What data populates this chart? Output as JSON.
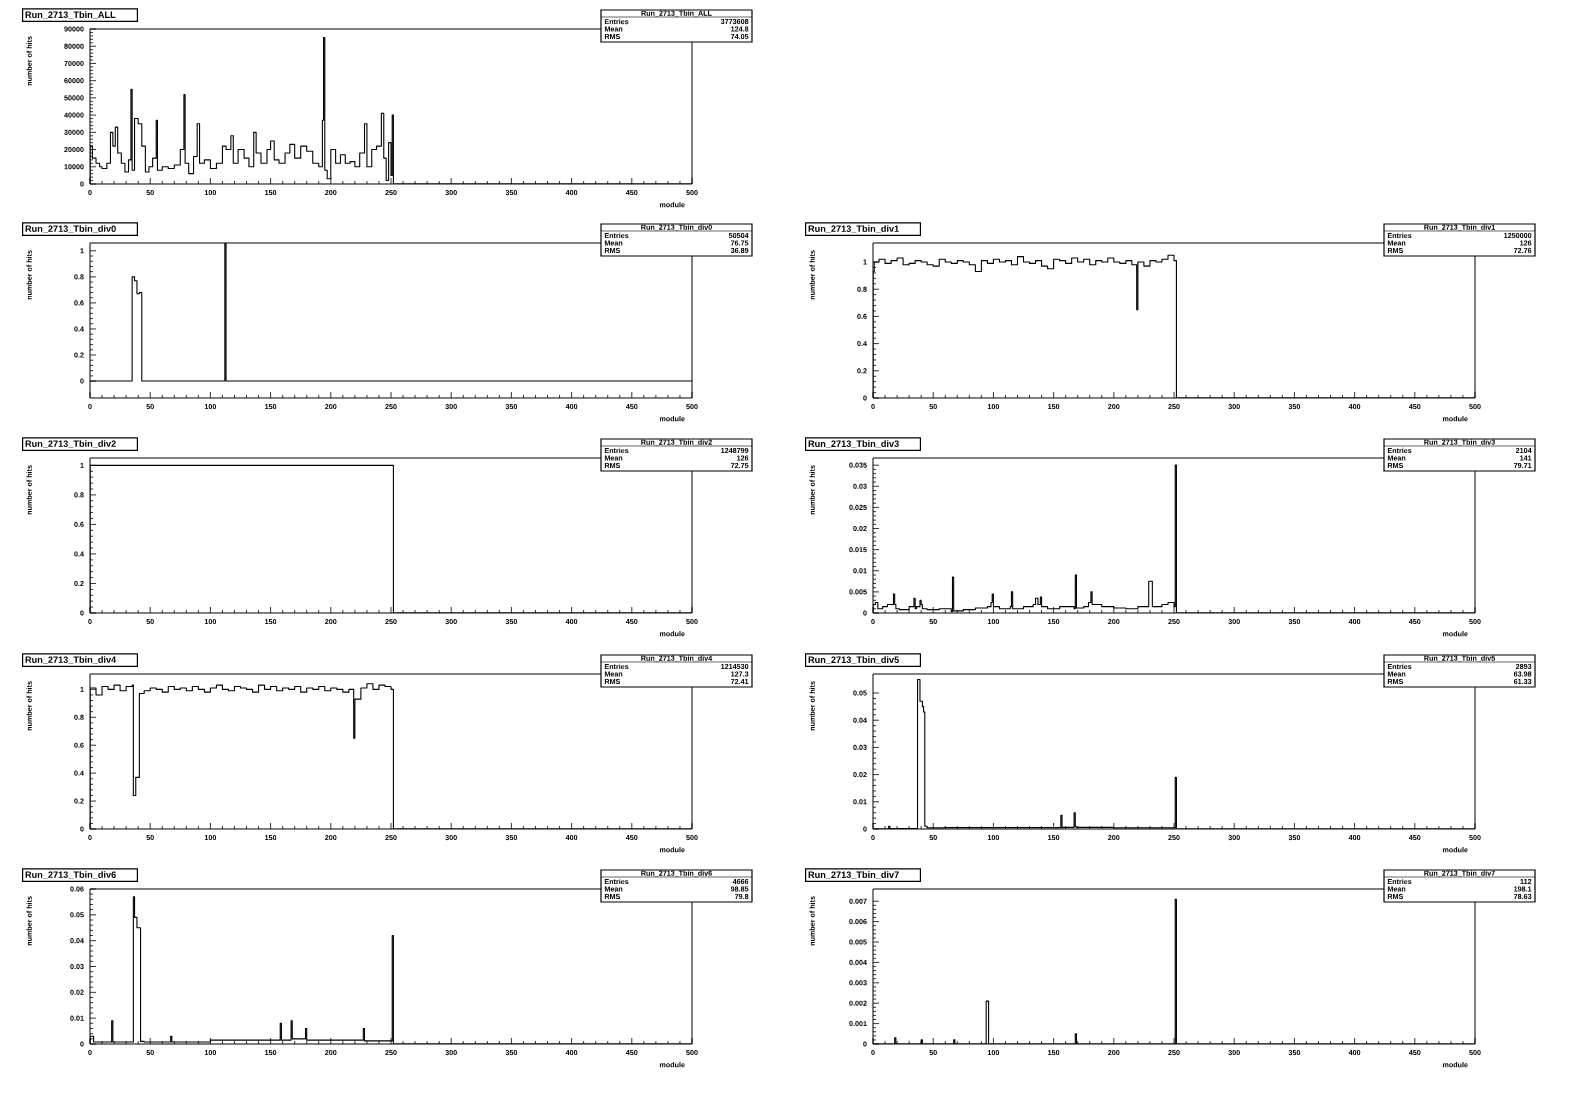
{
  "chart_data": [
    {
      "type": "histogram",
      "title": "Run_2713_Tbin_ALL",
      "xlabel": "module",
      "ylabel": "number of hits",
      "color": "#000000",
      "annotations": [
        "Run_2713_Tbin_ALL",
        "Entries",
        "3773608",
        "Mean",
        "124.8",
        "RMS",
        "74.05"
      ],
      "xlim": [
        0,
        500
      ],
      "xticks": [
        0,
        50,
        100,
        150,
        200,
        250,
        300,
        350,
        400,
        450,
        500
      ],
      "ylim": [
        0,
        90000
      ],
      "yticks": [
        0,
        10000,
        20000,
        30000,
        40000,
        50000,
        60000,
        70000,
        80000,
        90000
      ],
      "bins": [
        0,
        2,
        5,
        8,
        10,
        14,
        17,
        19,
        21,
        23,
        26,
        29,
        32,
        34,
        35,
        37,
        40,
        43,
        46,
        49,
        52,
        55,
        56,
        60,
        65,
        70,
        75,
        78,
        79,
        82,
        86,
        89,
        91,
        95,
        100,
        105,
        110,
        113,
        117,
        119,
        123,
        128,
        132,
        136,
        138,
        142,
        147,
        150,
        153,
        157,
        162,
        166,
        170,
        175,
        180,
        185,
        190,
        193,
        194,
        195,
        197,
        200,
        204,
        208,
        212,
        216,
        220,
        224,
        228,
        230,
        234,
        238,
        242,
        244,
        246,
        248,
        250,
        251,
        252,
        500
      ],
      "values": [
        22000,
        15000,
        12000,
        10000,
        9000,
        12000,
        30000,
        22000,
        33000,
        18000,
        12000,
        7000,
        14000,
        55000,
        8000,
        38000,
        35000,
        22000,
        7000,
        10000,
        15000,
        37000,
        8000,
        10000,
        9000,
        11000,
        20000,
        52000,
        12000,
        6000,
        16000,
        35000,
        12000,
        14000,
        9000,
        12000,
        22000,
        20000,
        28000,
        12000,
        20000,
        15000,
        10000,
        30000,
        18000,
        12000,
        20000,
        25000,
        14000,
        12000,
        18000,
        23000,
        15000,
        22000,
        19000,
        12000,
        10000,
        37000,
        85000,
        8000,
        3000,
        20000,
        12000,
        17000,
        12000,
        13000,
        10000,
        18000,
        35000,
        10000,
        20000,
        22000,
        41000,
        15000,
        2000,
        24000,
        5000,
        40000,
        0
      ]
    },
    {
      "type": "histogram",
      "title": "Run_2713_Tbin_div0",
      "xlabel": "module",
      "ylabel": "number of hits",
      "color": "#000000",
      "annotations": [
        "Run_2713_Tbin_div0",
        "Entries",
        "50504",
        "Mean",
        "76.75",
        "RMS",
        "36.89"
      ],
      "xlim": [
        0,
        500
      ],
      "xticks": [
        0,
        50,
        100,
        150,
        200,
        250,
        300,
        350,
        400,
        450,
        500
      ],
      "ylim": [
        -0.13,
        1.06
      ],
      "yticks": [
        0,
        0.2,
        0.4,
        0.6,
        0.8,
        1
      ],
      "bins": [
        0,
        35,
        37,
        39,
        41,
        43,
        112,
        113,
        500
      ],
      "values": [
        0,
        0.8,
        0.77,
        0.67,
        0.68,
        0,
        1.06,
        0
      ]
    },
    {
      "type": "histogram",
      "title": "Run_2713_Tbin_div1",
      "xlabel": "module",
      "ylabel": "number of hits",
      "color": "#000000",
      "annotations": [
        "Run_2713_Tbin_div1",
        "Entries",
        "1250000",
        "Mean",
        "126",
        "RMS",
        "72.76"
      ],
      "xlim": [
        0,
        500
      ],
      "xticks": [
        0,
        50,
        100,
        150,
        200,
        250,
        300,
        350,
        400,
        450,
        500
      ],
      "ylim": [
        0,
        1.14
      ],
      "yticks": [
        0,
        0.2,
        0.4,
        0.6,
        0.8,
        1
      ],
      "bins": [
        0,
        1,
        5,
        10,
        15,
        20,
        25,
        30,
        35,
        40,
        45,
        50,
        55,
        60,
        65,
        70,
        75,
        80,
        85,
        90,
        95,
        100,
        105,
        110,
        115,
        120,
        125,
        130,
        135,
        140,
        145,
        150,
        155,
        160,
        165,
        170,
        175,
        180,
        185,
        190,
        195,
        200,
        205,
        210,
        215,
        219,
        220,
        225,
        230,
        235,
        240,
        245,
        250,
        252,
        500
      ],
      "values": [
        0.93,
        1.0,
        1.02,
        0.99,
        1.01,
        1.03,
        0.98,
        0.99,
        1.01,
        1.0,
        0.98,
        0.97,
        1.02,
        1.0,
        0.99,
        1.01,
        1.0,
        0.98,
        0.93,
        1.01,
        0.99,
        1.02,
        1.0,
        1.01,
        0.98,
        1.04,
        1.0,
        0.99,
        1.01,
        0.97,
        0.95,
        1.02,
        1.01,
        0.99,
        1.03,
        1.0,
        1.02,
        0.98,
        1.01,
        1.0,
        1.03,
        1.0,
        0.99,
        1.01,
        0.98,
        0.65,
        1.0,
        0.97,
        1.01,
        1.0,
        1.02,
        1.05,
        1.01,
        0
      ]
    },
    {
      "type": "histogram",
      "title": "Run_2713_Tbin_div2",
      "xlabel": "module",
      "ylabel": "number of hits",
      "color": "#000000",
      "annotations": [
        "Run_2713_Tbin_div2",
        "Entries",
        "1248799",
        "Mean",
        "126",
        "RMS",
        "72.75"
      ],
      "xlim": [
        0,
        500
      ],
      "xticks": [
        0,
        50,
        100,
        150,
        200,
        250,
        300,
        350,
        400,
        450,
        500
      ],
      "ylim": [
        0,
        1.05
      ],
      "yticks": [
        0,
        0.2,
        0.4,
        0.6,
        0.8,
        1
      ],
      "bins": [
        0,
        25,
        50,
        75,
        100,
        125,
        150,
        175,
        200,
        225,
        250,
        252,
        500
      ],
      "values": [
        1,
        1,
        1,
        1,
        1,
        1,
        1,
        1,
        1,
        1,
        1,
        0
      ]
    },
    {
      "type": "histogram",
      "title": "Run_2713_Tbin_div3",
      "xlabel": "module",
      "ylabel": "number of hits",
      "color": "#000000",
      "annotations": [
        "Run_2713_Tbin_div3",
        "Entries",
        "2104",
        "Mean",
        "141",
        "RMS",
        "79.71"
      ],
      "xlim": [
        0,
        500
      ],
      "xticks": [
        0,
        50,
        100,
        150,
        200,
        250,
        300,
        350,
        400,
        450,
        500
      ],
      "ylim": [
        0,
        0.0367
      ],
      "yticks": [
        0,
        0.005,
        0.01,
        0.015,
        0.02,
        0.025,
        0.03,
        0.035
      ],
      "bins": [
        0,
        2,
        4,
        8,
        12,
        17,
        18,
        19,
        22,
        30,
        34,
        35,
        36,
        39,
        40,
        41,
        45,
        55,
        65,
        66,
        67,
        75,
        85,
        95,
        98,
        99,
        100,
        105,
        114,
        115,
        116,
        125,
        133,
        135,
        137,
        139,
        140,
        145,
        155,
        167,
        168,
        169,
        175,
        179,
        181,
        182,
        190,
        200,
        210,
        220,
        226,
        229,
        232,
        240,
        245,
        250,
        251,
        252,
        500
      ],
      "values": [
        0.002,
        0.0025,
        0.001,
        0.0015,
        0.002,
        0.0045,
        0.002,
        0.001,
        0.0008,
        0.0015,
        0.0035,
        0.001,
        0.0015,
        0.003,
        0.002,
        0.001,
        0.0008,
        0.001,
        0.0003,
        0.0085,
        0.0005,
        0.0008,
        0.0012,
        0.0015,
        0.0025,
        0.0045,
        0.0015,
        0.001,
        0.0015,
        0.005,
        0.001,
        0.0015,
        0.002,
        0.0035,
        0.002,
        0.0038,
        0.0015,
        0.001,
        0.0015,
        0.001,
        0.009,
        0.0012,
        0.0015,
        0.0025,
        0.005,
        0.002,
        0.0015,
        0.0012,
        0.001,
        0.0015,
        0.0015,
        0.0075,
        0.0015,
        0.002,
        0.0025,
        0.0015,
        0.035,
        0
      ]
    },
    {
      "type": "histogram",
      "title": "Run_2713_Tbin_div4",
      "xlabel": "module",
      "ylabel": "number of hits",
      "color": "#000000",
      "annotations": [
        "Run_2713_Tbin_div4",
        "Entries",
        "1214530",
        "Mean",
        "127.3",
        "RMS",
        "72.41"
      ],
      "xlim": [
        0,
        500
      ],
      "xticks": [
        0,
        50,
        100,
        150,
        200,
        250,
        300,
        350,
        400,
        450,
        500
      ],
      "ylim": [
        0,
        1.11
      ],
      "yticks": [
        0,
        0.2,
        0.4,
        0.6,
        0.8,
        1
      ],
      "bins": [
        0,
        5,
        10,
        15,
        20,
        25,
        30,
        35,
        36,
        38,
        41,
        45,
        50,
        55,
        60,
        65,
        70,
        75,
        80,
        85,
        90,
        95,
        100,
        105,
        110,
        115,
        120,
        125,
        130,
        135,
        140,
        145,
        150,
        155,
        160,
        165,
        170,
        175,
        180,
        185,
        190,
        195,
        200,
        205,
        210,
        215,
        219,
        220,
        225,
        230,
        235,
        240,
        245,
        250,
        252,
        500
      ],
      "values": [
        1.01,
        0.96,
        1.02,
        1.0,
        1.03,
        0.99,
        1.02,
        1.03,
        0.24,
        0.37,
        0.97,
        0.99,
        1.01,
        1.0,
        0.98,
        1.02,
        1.0,
        1.01,
        0.99,
        1.02,
        1.0,
        0.98,
        1.01,
        1.03,
        1.0,
        0.99,
        1.02,
        1.01,
        1.0,
        0.98,
        1.03,
        1.0,
        1.02,
        0.99,
        1.01,
        1.0,
        1.02,
        0.98,
        1.01,
        1.0,
        1.02,
        0.99,
        1.01,
        1.0,
        0.98,
        1.0,
        0.65,
        0.93,
        1.01,
        1.04,
        1.0,
        1.03,
        1.02,
        1.0,
        0
      ]
    },
    {
      "type": "histogram",
      "title": "Run_2713_Tbin_div5",
      "xlabel": "module",
      "ylabel": "number of hits",
      "color": "#000000",
      "annotations": [
        "Run_2713_Tbin_div5",
        "Entries",
        "2893",
        "Mean",
        "63.98",
        "RMS",
        "61.33"
      ],
      "xlim": [
        0,
        500
      ],
      "xticks": [
        0,
        50,
        100,
        150,
        200,
        250,
        300,
        350,
        400,
        450,
        500
      ],
      "ylim": [
        0,
        0.057
      ],
      "yticks": [
        0,
        0.01,
        0.02,
        0.03,
        0.04,
        0.05
      ],
      "bins": [
        0,
        13,
        14,
        37,
        39,
        41,
        42,
        43,
        45,
        60,
        100,
        156,
        157,
        158,
        167,
        168,
        169,
        200,
        250,
        251,
        252,
        500
      ],
      "values": [
        0,
        0.001,
        0.0002,
        0.055,
        0.047,
        0.045,
        0.043,
        0.001,
        0.0004,
        0.0005,
        0.0005,
        0.005,
        0.0005,
        0.0006,
        0.006,
        0.0008,
        0.0006,
        0.0004,
        0.0005,
        0.019,
        0
      ]
    },
    {
      "type": "histogram",
      "title": "Run_2713_Tbin_div6",
      "xlabel": "module",
      "ylabel": "number of hits",
      "color": "#000000",
      "annotations": [
        "Run_2713_Tbin_div6",
        "Entries",
        "4666",
        "Mean",
        "98.85",
        "RMS",
        "79.8"
      ],
      "xlim": [
        0,
        500
      ],
      "xticks": [
        0,
        50,
        100,
        150,
        200,
        250,
        300,
        350,
        400,
        450,
        500
      ],
      "ylim": [
        0,
        0.06
      ],
      "yticks": [
        0,
        0.01,
        0.02,
        0.03,
        0.04,
        0.05,
        0.06
      ],
      "bins": [
        0,
        3,
        18,
        19,
        36,
        37,
        39,
        42,
        45,
        67,
        68,
        100,
        158,
        159,
        167,
        168,
        179,
        180,
        227,
        228,
        250,
        251,
        252,
        500
      ],
      "values": [
        0.003,
        0.0008,
        0.009,
        0.0008,
        0.057,
        0.049,
        0.045,
        0.001,
        0.0008,
        0.003,
        0.0008,
        0.0015,
        0.008,
        0.0015,
        0.009,
        0.002,
        0.006,
        0.0015,
        0.006,
        0.0012,
        0.0012,
        0.042,
        0
      ]
    },
    {
      "type": "histogram",
      "title": "Run_2713_Tbin_div7",
      "xlabel": "module",
      "ylabel": "number of hits",
      "color": "#000000",
      "annotations": [
        "Run_2713_Tbin_div7",
        "Entries",
        "112",
        "Mean",
        "198.1",
        "RMS",
        "78.63"
      ],
      "xlim": [
        0,
        500
      ],
      "xticks": [
        0,
        50,
        100,
        150,
        200,
        250,
        300,
        350,
        400,
        450,
        500
      ],
      "ylim": [
        0,
        0.0076
      ],
      "yticks": [
        0,
        0.001,
        0.002,
        0.003,
        0.004,
        0.005,
        0.006,
        0.007
      ],
      "bins": [
        0,
        18,
        19,
        40,
        41,
        67,
        68,
        94,
        96,
        168,
        169,
        251,
        252,
        500
      ],
      "values": [
        0,
        0.0003,
        0,
        0.0002,
        0,
        0.0002,
        0,
        0.0021,
        0,
        0.0005,
        0,
        0.0071,
        0
      ]
    }
  ]
}
